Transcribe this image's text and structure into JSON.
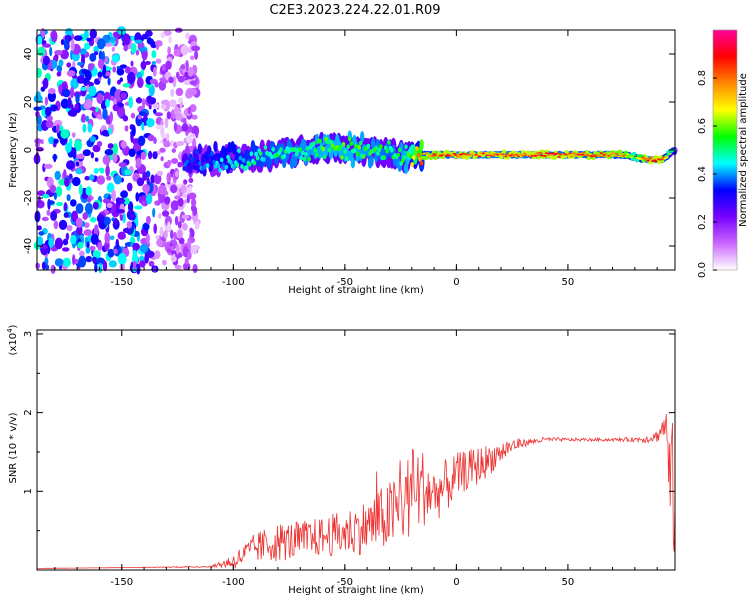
{
  "title": "C2E3.2023.224.22.01.R09",
  "chart_data": [
    {
      "type": "heatmap",
      "xlabel": "Height of straight line (km)",
      "ylabel": "Frequency (Hz)",
      "xlim": [
        -188,
        98
      ],
      "ylim": [
        -50,
        50
      ],
      "x_ticks": [
        -150,
        -100,
        -50,
        0,
        50
      ],
      "y_ticks": [
        -40,
        -20,
        0,
        20,
        40
      ],
      "colorbar": {
        "label": "Normalized spectral amplitude",
        "range": [
          0,
          1
        ],
        "ticks": [
          0.0,
          0.2,
          0.4,
          0.6,
          0.8
        ],
        "colors": [
          "#ffffff",
          "#cc66ff",
          "#7700ff",
          "#0000ff",
          "#00ffff",
          "#00ff00",
          "#ffff00",
          "#ff8800",
          "#ff0000",
          "#ff0099"
        ]
      },
      "ridge": {
        "x": [
          -122,
          -100,
          -80,
          -60,
          -45,
          -30,
          -22,
          -15,
          0,
          20,
          50,
          75,
          80,
          85,
          92,
          98
        ],
        "frequency": [
          -5,
          -4,
          -2,
          1,
          0,
          -1,
          -3,
          -2,
          -2,
          -2,
          -2,
          -2,
          -3,
          -4,
          -4,
          0
        ],
        "amplitude": [
          0.35,
          0.45,
          0.5,
          0.55,
          0.55,
          0.5,
          0.55,
          0.8,
          0.85,
          0.85,
          0.85,
          0.8,
          0.6,
          0.85,
          0.85,
          0.4
        ]
      },
      "noise_region_x": [
        -188,
        -120
      ]
    },
    {
      "type": "line",
      "xlabel": "Height of straight line (km)",
      "ylabel": "SNR (10 * v/v)",
      "y_multiplier": "(x10",
      "y_multiplier_exp": "4",
      "y_multiplier_close": ")",
      "xlim": [
        -188,
        98
      ],
      "ylim": [
        0,
        3.05
      ],
      "x_ticks": [
        -150,
        -100,
        -50,
        0,
        50
      ],
      "y_ticks": [
        1,
        2,
        3
      ],
      "color": "#ee3333",
      "series": [
        {
          "x": [
            -188,
            -150,
            -110,
            -100,
            -95,
            -90,
            -80,
            -70,
            -60,
            -50,
            -40,
            -30,
            -25,
            -20,
            -15,
            -10,
            -5,
            0,
            5,
            10,
            15,
            20,
            25,
            30,
            40,
            50,
            60,
            70,
            80,
            85,
            90,
            94,
            96,
            98
          ],
          "y": [
            0.02,
            0.03,
            0.04,
            0.08,
            0.15,
            0.22,
            0.28,
            0.3,
            0.35,
            0.38,
            0.45,
            0.55,
            0.65,
            0.8,
            0.9,
            0.85,
            0.95,
            1.1,
            1.2,
            1.25,
            1.35,
            1.45,
            1.55,
            1.6,
            1.65,
            1.65,
            1.65,
            1.65,
            1.65,
            1.65,
            1.68,
            1.8,
            0.7,
            0.8
          ],
          "noise_amplitude": [
            0,
            0,
            0.01,
            0.1,
            0.15,
            0.2,
            0.25,
            0.25,
            0.25,
            0.3,
            0.35,
            0.45,
            0.5,
            0.6,
            0.5,
            0.35,
            0.35,
            0.3,
            0.25,
            0.25,
            0.2,
            0.15,
            0.1,
            0.05,
            0.03,
            0.02,
            0.02,
            0.02,
            0.03,
            0.05,
            0.08,
            0.2,
            0.8,
            1.0
          ]
        }
      ]
    }
  ]
}
